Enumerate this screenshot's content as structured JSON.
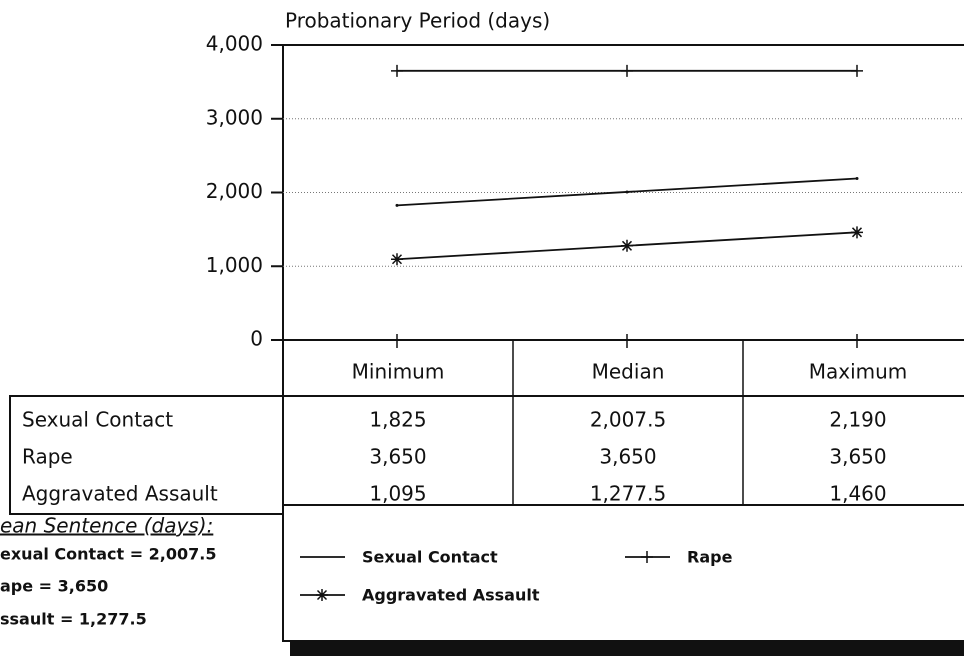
{
  "chart_data": {
    "type": "line",
    "title": "Probationary Period (days)",
    "categories": [
      "Minimum",
      "Median",
      "Maximum"
    ],
    "series": [
      {
        "name": "Sexual Contact",
        "color": "#111111",
        "marker": "dot",
        "values": [
          1825,
          2007.5,
          2190
        ],
        "value_labels": [
          "1,825",
          "2,007.5",
          "2,190"
        ]
      },
      {
        "name": "Rape",
        "color": "#111111",
        "marker": "plus",
        "values": [
          3650,
          3650,
          3650
        ],
        "value_labels": [
          "3,650",
          "3,650",
          "3,650"
        ]
      },
      {
        "name": "Aggravated Assault",
        "color": "#111111",
        "marker": "star",
        "values": [
          1095,
          1277.5,
          1460
        ],
        "value_labels": [
          "1,095",
          "1,277.5",
          "1,460"
        ]
      }
    ],
    "ylim": [
      0,
      4000
    ],
    "yticks": [
      0,
      {
        "value": 1000,
        "label": "1,000"
      },
      {
        "value": 2000,
        "label": "2,000"
      },
      {
        "value": 3000,
        "label": "3,000"
      },
      {
        "value": 4000,
        "label": "4,000"
      }
    ],
    "grid": true,
    "annotations": [
      "ean Sentence (days):",
      "exual Contact = 2,007.5",
      "ape = 3,650",
      "ssault = 1,277.5"
    ]
  }
}
